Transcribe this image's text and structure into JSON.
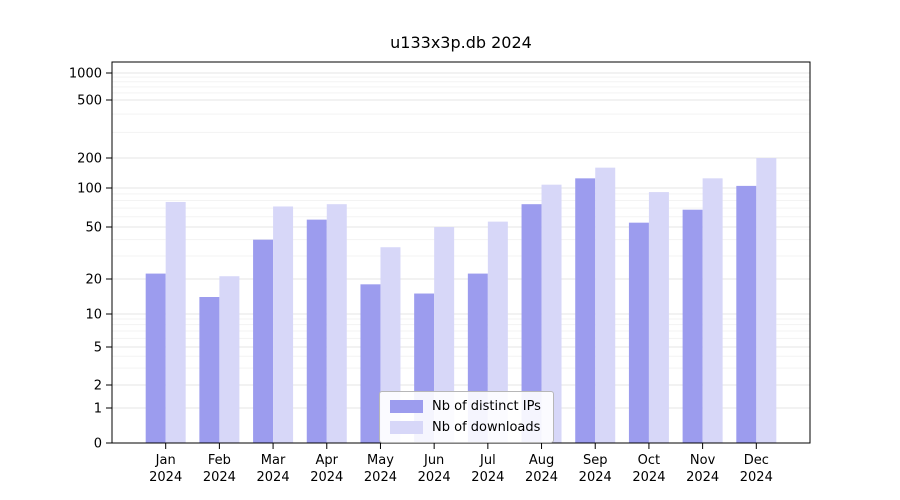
{
  "chart_data": {
    "type": "bar",
    "title": "u133x3p.db 2024",
    "categories": [
      "Jan",
      "Feb",
      "Mar",
      "Apr",
      "May",
      "Jun",
      "Jul",
      "Aug",
      "Sep",
      "Oct",
      "Nov",
      "Dec"
    ],
    "category_year": "2024",
    "series": [
      {
        "name": "Nb of distinct IPs",
        "color": "#9c9cee",
        "values": [
          22,
          14,
          40,
          57,
          18,
          15,
          22,
          75,
          125,
          54,
          68,
          105
        ]
      },
      {
        "name": "Nb of downloads",
        "color": "#d7d7f8",
        "values": [
          78,
          21,
          72,
          75,
          35,
          50,
          55,
          108,
          160,
          93,
          125,
          200
        ]
      }
    ],
    "xlabel": "",
    "ylabel": "",
    "yscale": "symlog",
    "yticks": [
      0,
      1,
      2,
      5,
      10,
      20,
      50,
      100,
      200,
      500,
      1000
    ],
    "ylim": [
      0,
      1400
    ],
    "grid": true,
    "legend_position": "lower center"
  }
}
